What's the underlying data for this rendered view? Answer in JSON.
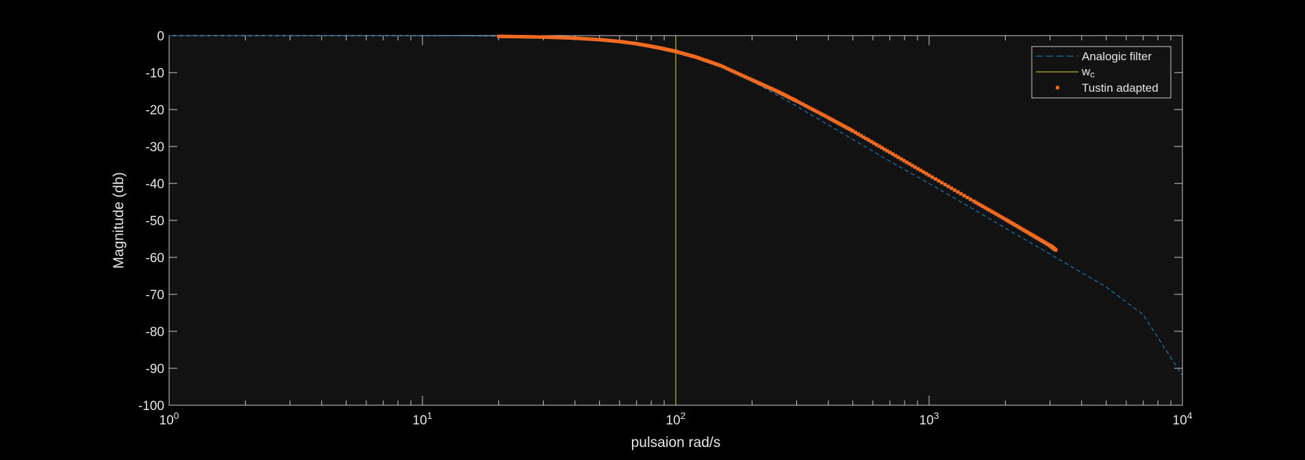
{
  "chart_data": {
    "type": "line",
    "xscale": "log",
    "xlim": [
      1,
      10000
    ],
    "ylim": [
      -100,
      0
    ],
    "xlabel": "pulsaion rad/s",
    "ylabel": "Magnitude (db)",
    "yticks": [
      0,
      -10,
      -20,
      -30,
      -40,
      -50,
      -60,
      -70,
      -80,
      -90,
      -100
    ],
    "ytick_labels": [
      "0",
      "-10",
      "-20",
      "-30",
      "-40",
      "-50",
      "-60",
      "-70",
      "-80",
      "-90",
      "-100"
    ],
    "xticks": [
      1,
      10,
      100,
      1000,
      10000
    ],
    "xtick_labels": [
      {
        "base": "10",
        "exp": "0"
      },
      {
        "base": "10",
        "exp": "1"
      },
      {
        "base": "10",
        "exp": "2"
      },
      {
        "base": "10",
        "exp": "3"
      },
      {
        "base": "10",
        "exp": "4"
      }
    ],
    "grid": false,
    "legend_position": "top-right",
    "series": [
      {
        "name": "Analogic filter",
        "style": "dashed",
        "color": "#1f8fd6",
        "x": [
          1,
          2,
          4,
          7,
          10,
          15,
          20,
          30,
          50,
          70,
          100,
          150,
          200,
          300,
          500,
          700,
          1000,
          1500,
          2000,
          3000,
          5000,
          7000,
          10000
        ],
        "y": [
          0,
          0,
          -0.01,
          -0.02,
          -0.04,
          -0.1,
          -0.17,
          -0.4,
          -1.0,
          -1.9,
          -3.8,
          -8.1,
          -12.3,
          -19.1,
          -28.1,
          -34.0,
          -40.0,
          -47.0,
          -52.1,
          -59.1,
          -68.0,
          -75.5,
          -92.0
        ]
      },
      {
        "name": "w",
        "name_sub": "c",
        "style": "vertical-line",
        "color": "#e3e33a",
        "x_value": 100
      },
      {
        "name": "Tustin adapted",
        "style": "markers",
        "color": "#f26b21",
        "x": [
          20,
          25,
          30,
          40,
          50,
          60,
          70,
          80,
          90,
          100,
          120,
          150,
          200,
          250,
          300,
          400,
          500,
          700,
          1000,
          1500,
          2000,
          2500,
          3000,
          3162
        ],
        "y": [
          -0.2,
          -0.3,
          -0.4,
          -0.7,
          -1.1,
          -1.6,
          -2.2,
          -2.9,
          -3.6,
          -4.3,
          -5.8,
          -8.1,
          -12.0,
          -15.0,
          -17.7,
          -22.2,
          -25.8,
          -31.6,
          -37.8,
          -44.8,
          -49.7,
          -53.6,
          -56.8,
          -58.0
        ]
      }
    ]
  },
  "colors": {
    "background": "#000000",
    "plot_area": "#121212",
    "axis": "#cfcfcf",
    "text": "#e6e6e6"
  }
}
